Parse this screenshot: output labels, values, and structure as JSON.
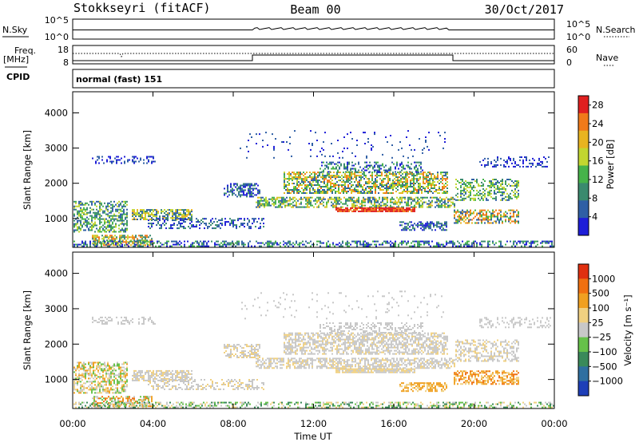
{
  "header": {
    "radar": "Stokkseyri (fitACF)",
    "beam": "Beam 00",
    "date": "30/Oct/2017"
  },
  "noise_panel": {
    "left_label": "N.Sky",
    "left_ticks": [
      "10^5",
      "10^0"
    ],
    "right_ticks": [
      "10^5",
      "10^0"
    ],
    "right_label": "N.Search"
  },
  "freq_panel": {
    "left_label_1": "Freq.",
    "left_label_2": "[MHz]",
    "left_ticks": [
      "18",
      "8"
    ],
    "right_ticks": [
      "60",
      "0"
    ],
    "right_label": "Nave",
    "cpid_label": "CPID",
    "cpid_text": "normal (fast) 151"
  },
  "colors": {
    "power_scale": [
      "#1e1ed8",
      "#2f5fa5",
      "#3a8a6e",
      "#46b34a",
      "#c2d630",
      "#e8b420",
      "#f07a1a",
      "#e02020"
    ],
    "velocity_scale": [
      "#1e3fb8",
      "#2f6fa0",
      "#3a8a5a",
      "#66c14a",
      "#c8c8c8",
      "#f0d080",
      "#f0a020",
      "#f07010",
      "#e03010"
    ]
  },
  "chart_data": [
    {
      "type": "heatmap",
      "name": "power",
      "ylabel": "Slant Range [km]",
      "y_ticks": [
        "1000",
        "2000",
        "3000",
        "4000"
      ],
      "ylim": [
        180,
        4600
      ],
      "xlim_hours": [
        0,
        24
      ],
      "colorbar_label": "Power [dB]",
      "colorbar_ticks": [
        "4",
        "8",
        "12",
        "16",
        "20",
        "24",
        "28"
      ],
      "colorbar_range": [
        0,
        30
      ]
    },
    {
      "type": "heatmap",
      "name": "velocity",
      "ylabel": "Slant Range [km]",
      "y_ticks": [
        "1000",
        "2000",
        "3000",
        "4000"
      ],
      "ylim": [
        180,
        4600
      ],
      "xlim_hours": [
        0,
        24
      ],
      "colorbar_label": "Velocity [m s⁻¹]",
      "colorbar_ticks": [
        "1000",
        "500",
        "100",
        "25",
        "−25",
        "−100",
        "−500",
        "−1000"
      ]
    }
  ],
  "x_axis": {
    "ticks": [
      "00:00",
      "04:00",
      "08:00",
      "12:00",
      "16:00",
      "20:00",
      "00:00"
    ],
    "label": "Time UT"
  }
}
